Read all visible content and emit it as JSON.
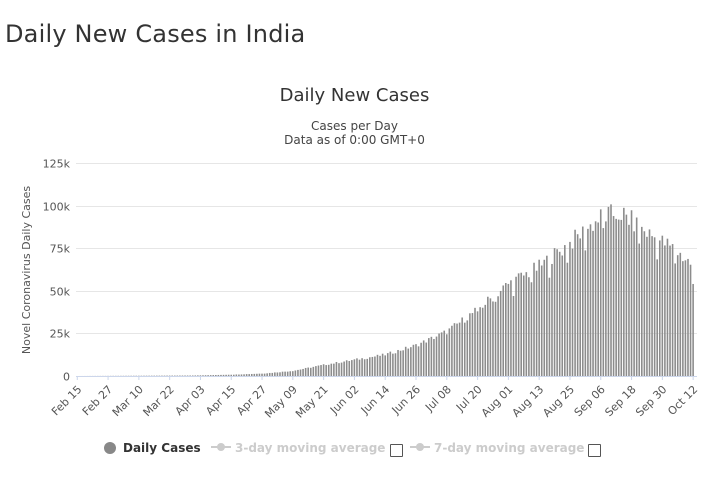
{
  "page": {
    "title": "Daily New Cases in India"
  },
  "chart_data": {
    "type": "bar",
    "title": "Daily New Cases",
    "subtitle": "Cases per Day",
    "subtitle2": "Data as of 0:00 GMT+0",
    "xlabel": "",
    "ylabel": "Novel Coronavirus Daily Cases",
    "ylim": [
      0,
      125000
    ],
    "yticks": [
      0,
      25000,
      50000,
      75000,
      100000,
      125000
    ],
    "ytick_labels": [
      "0",
      "25k",
      "50k",
      "75k",
      "100k",
      "125k"
    ],
    "grid": true,
    "start_date": "Feb 15",
    "x_tick_labels": [
      "Feb 15",
      "Feb 27",
      "Mar 10",
      "Mar 22",
      "Apr 03",
      "Apr 15",
      "Apr 27",
      "May 09",
      "May 21",
      "Jun 02",
      "Jun 14",
      "Jun 26",
      "Jul 08",
      "Jul 20",
      "Aug 01",
      "Aug 13",
      "Aug 25",
      "Sep 06",
      "Sep 18",
      "Sep 30",
      "Oct 12"
    ],
    "bar_color": "#8c8c8c",
    "anchors": [
      [
        0,
        0
      ],
      [
        45,
        300
      ],
      [
        61,
        800
      ],
      [
        73,
        1500
      ],
      [
        84,
        3000
      ],
      [
        96,
        6500
      ],
      [
        108,
        9500
      ],
      [
        120,
        12500
      ],
      [
        132,
        18000
      ],
      [
        144,
        26000
      ],
      [
        156,
        39000
      ],
      [
        168,
        54000
      ],
      [
        180,
        64000
      ],
      [
        192,
        78000
      ],
      [
        204,
        93000
      ],
      [
        212,
        96000
      ],
      [
        220,
        86000
      ],
      [
        232,
        75000
      ],
      [
        240,
        65000
      ]
    ],
    "series": [
      {
        "name": "Daily Cases"
      },
      {
        "name": "3-day moving average"
      },
      {
        "name": "7-day moving average"
      }
    ]
  },
  "legend": {
    "items": [
      {
        "label": "Daily Cases",
        "active": true,
        "color": "#888888"
      },
      {
        "label": "3-day moving average",
        "active": false,
        "color": "#cccccc"
      },
      {
        "label": "7-day moving average",
        "active": false,
        "color": "#cccccc"
      }
    ]
  }
}
